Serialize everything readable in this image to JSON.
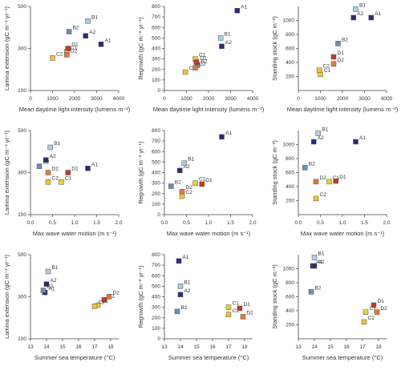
{
  "colors": {
    "navy": "#2b2b7a",
    "steelblue": "#6b8fb5",
    "lightblue": "#a9cfe2",
    "red": "#c0392b",
    "orange": "#e07b39",
    "yellow": "#e6d233",
    "gold": "#f0c040"
  },
  "chart_data": [
    {
      "type": "scatter",
      "xlabel": "Mean daytime light intensity (lumens m⁻²)",
      "ylabel": "Lamina extension (gC m⁻² yr⁻¹)",
      "xlim": [
        0,
        4000
      ],
      "ylim": [
        100,
        500
      ],
      "xticks": [
        "0",
        "1000",
        "2000",
        "3000",
        "4000"
      ],
      "yticks": [
        "100",
        "300",
        "500"
      ],
      "points": [
        {
          "label": "A1",
          "x": 3200,
          "y": 320,
          "color": "navy"
        },
        {
          "label": "A2",
          "x": 2500,
          "y": 360,
          "color": "navy"
        },
        {
          "label": "B1",
          "x": 2600,
          "y": 430,
          "color": "lightblue"
        },
        {
          "label": "B2",
          "x": 1750,
          "y": 380,
          "color": "steelblue"
        },
        {
          "label": "C1",
          "x": 1650,
          "y": 285,
          "color": "yellow"
        },
        {
          "label": "C2",
          "x": 1000,
          "y": 255,
          "color": "gold"
        },
        {
          "label": "D1",
          "x": 1700,
          "y": 300,
          "color": "red"
        },
        {
          "label": "D2",
          "x": 1650,
          "y": 270,
          "color": "orange"
        }
      ]
    },
    {
      "type": "scatter",
      "xlabel": "Mean daytime light intensity (lumens m⁻²)",
      "ylabel": "Regrowth (gC m⁻² yr⁻¹)",
      "xlim": [
        0,
        4000
      ],
      "ylim": [
        0,
        800
      ],
      "xticks": [
        "0",
        "1000",
        "2000",
        "3000",
        "4000"
      ],
      "yticks": [
        "0",
        "100",
        "200",
        "300",
        "400",
        "500",
        "600",
        "700",
        "800"
      ],
      "points": [
        {
          "label": "A1",
          "x": 3300,
          "y": 760,
          "color": "navy"
        },
        {
          "label": "A2",
          "x": 2600,
          "y": 420,
          "color": "navy"
        },
        {
          "label": "B1",
          "x": 2550,
          "y": 500,
          "color": "lightblue"
        },
        {
          "label": "B2",
          "x": 1500,
          "y": 240,
          "color": "steelblue"
        },
        {
          "label": "C1",
          "x": 1400,
          "y": 300,
          "color": "yellow"
        },
        {
          "label": "C2",
          "x": 950,
          "y": 175,
          "color": "gold"
        },
        {
          "label": "D1",
          "x": 1450,
          "y": 270,
          "color": "red"
        },
        {
          "label": "D2",
          "x": 1400,
          "y": 215,
          "color": "orange"
        }
      ]
    },
    {
      "type": "scatter",
      "xlabel": "Mean daytime light intensity (lumens m⁻²)",
      "ylabel": "Standing stock (gC m⁻²)",
      "xlim": [
        0,
        4000
      ],
      "ylim": [
        0,
        1200
      ],
      "xticks": [
        "0",
        "1000",
        "2000",
        "3000",
        "4000"
      ],
      "yticks": [
        "200",
        "400",
        "600",
        "800",
        "1000"
      ],
      "points": [
        {
          "label": "A1",
          "x": 3300,
          "y": 1040,
          "color": "navy"
        },
        {
          "label": "A2",
          "x": 2500,
          "y": 1040,
          "color": "navy"
        },
        {
          "label": "B1",
          "x": 2600,
          "y": 1160,
          "color": "lightblue"
        },
        {
          "label": "B2",
          "x": 1800,
          "y": 670,
          "color": "steelblue"
        },
        {
          "label": "C1",
          "x": 1000,
          "y": 230,
          "color": "yellow"
        },
        {
          "label": "C2",
          "x": 950,
          "y": 290,
          "color": "gold"
        },
        {
          "label": "D1",
          "x": 1600,
          "y": 480,
          "color": "red"
        },
        {
          "label": "D2",
          "x": 1600,
          "y": 380,
          "color": "orange"
        }
      ]
    },
    {
      "type": "scatter",
      "xlabel": "Max wave water motion (m s⁻¹)",
      "ylabel": "Lamina extension (gC m⁻² yr⁻¹)",
      "xlim": [
        0,
        2.0
      ],
      "ylim": [
        100,
        500
      ],
      "xticks": [
        "0.0",
        "0.5",
        "1.0",
        "1.5",
        "2.0"
      ],
      "yticks": [
        "100",
        "300",
        "500"
      ],
      "points": [
        {
          "label": "A1",
          "x": 1.3,
          "y": 320,
          "color": "navy"
        },
        {
          "label": "A2",
          "x": 0.35,
          "y": 360,
          "color": "navy"
        },
        {
          "label": "B1",
          "x": 0.45,
          "y": 420,
          "color": "lightblue"
        },
        {
          "label": "B2",
          "x": 0.2,
          "y": 330,
          "color": "steelblue"
        },
        {
          "label": "C1",
          "x": 0.7,
          "y": 255,
          "color": "yellow"
        },
        {
          "label": "C2",
          "x": 0.4,
          "y": 255,
          "color": "gold"
        },
        {
          "label": "D1",
          "x": 0.85,
          "y": 300,
          "color": "red"
        },
        {
          "label": "D2",
          "x": 0.4,
          "y": 300,
          "color": "orange"
        }
      ]
    },
    {
      "type": "scatter",
      "xlabel": "Max wave water motion (m s⁻¹)",
      "ylabel": "Regrowth (gC m⁻² yr⁻¹)",
      "xlim": [
        0,
        2.0
      ],
      "ylim": [
        0,
        800
      ],
      "xticks": [
        "0.0",
        "0.5",
        "1.0",
        "1.5",
        "2.0"
      ],
      "yticks": [
        "0",
        "100",
        "200",
        "300",
        "400",
        "500",
        "600",
        "700",
        "800"
      ],
      "points": [
        {
          "label": "A1",
          "x": 1.3,
          "y": 740,
          "color": "navy"
        },
        {
          "label": "A2",
          "x": 0.35,
          "y": 420,
          "color": "navy"
        },
        {
          "label": "B1",
          "x": 0.45,
          "y": 490,
          "color": "lightblue"
        },
        {
          "label": "B2",
          "x": 0.15,
          "y": 270,
          "color": "steelblue"
        },
        {
          "label": "C1",
          "x": 0.7,
          "y": 300,
          "color": "yellow"
        },
        {
          "label": "C2",
          "x": 0.4,
          "y": 175,
          "color": "gold"
        },
        {
          "label": "D1",
          "x": 0.85,
          "y": 290,
          "color": "red"
        },
        {
          "label": "D2",
          "x": 0.4,
          "y": 220,
          "color": "orange"
        }
      ]
    },
    {
      "type": "scatter",
      "xlabel": "Max wave water motion (m s⁻¹)",
      "ylabel": "Standing stock (gC m⁻²)",
      "xlim": [
        0,
        2.0
      ],
      "ylim": [
        0,
        1200
      ],
      "xticks": [
        "0.0",
        "0.5",
        "1.0",
        "1.5",
        "2.0"
      ],
      "yticks": [
        "200",
        "400",
        "600",
        "800",
        "1000"
      ],
      "points": [
        {
          "label": "A1",
          "x": 1.3,
          "y": 1040,
          "color": "navy"
        },
        {
          "label": "A2",
          "x": 0.35,
          "y": 1040,
          "color": "navy"
        },
        {
          "label": "B1",
          "x": 0.45,
          "y": 1160,
          "color": "lightblue"
        },
        {
          "label": "B2",
          "x": 0.15,
          "y": 670,
          "color": "steelblue"
        },
        {
          "label": "C1",
          "x": 0.7,
          "y": 470,
          "color": "yellow"
        },
        {
          "label": "C2",
          "x": 0.4,
          "y": 230,
          "color": "gold"
        },
        {
          "label": "D1",
          "x": 0.85,
          "y": 480,
          "color": "red"
        },
        {
          "label": "D2",
          "x": 0.4,
          "y": 470,
          "color": "orange"
        }
      ]
    },
    {
      "type": "scatter",
      "xlabel": "Summer sea temperature (°C)",
      "ylabel": "Lamina extension (gC m⁻² yr⁻¹)",
      "xlim": [
        13,
        18.5
      ],
      "ylim": [
        100,
        500
      ],
      "xticks": [
        "13",
        "14",
        "15",
        "16",
        "17",
        "18"
      ],
      "yticks": [
        "100",
        "300",
        "500"
      ],
      "points": [
        {
          "label": "A1",
          "x": 13.9,
          "y": 320,
          "color": "navy"
        },
        {
          "label": "A2",
          "x": 14.0,
          "y": 360,
          "color": "navy"
        },
        {
          "label": "B1",
          "x": 14.1,
          "y": 420,
          "color": "lightblue"
        },
        {
          "label": "B2",
          "x": 13.8,
          "y": 330,
          "color": "steelblue"
        },
        {
          "label": "C1",
          "x": 17.2,
          "y": 260,
          "color": "yellow"
        },
        {
          "label": "C2",
          "x": 17.0,
          "y": 255,
          "color": "gold"
        },
        {
          "label": "D1",
          "x": 17.6,
          "y": 285,
          "color": "red"
        },
        {
          "label": "D2",
          "x": 17.9,
          "y": 300,
          "color": "orange"
        }
      ]
    },
    {
      "type": "scatter",
      "xlabel": "Summer sea temperature (°C)",
      "ylabel": "Regrowth (gC m⁻² yr⁻¹)",
      "xlim": [
        13,
        18.5
      ],
      "ylim": [
        0,
        800
      ],
      "xticks": [
        "13",
        "14",
        "15",
        "16",
        "17",
        "18"
      ],
      "yticks": [
        "0",
        "100",
        "200",
        "300",
        "400",
        "500",
        "600",
        "700",
        "800"
      ],
      "points": [
        {
          "label": "A1",
          "x": 13.9,
          "y": 740,
          "color": "navy"
        },
        {
          "label": "A2",
          "x": 14.0,
          "y": 420,
          "color": "navy"
        },
        {
          "label": "B1",
          "x": 14.0,
          "y": 500,
          "color": "lightblue"
        },
        {
          "label": "B2",
          "x": 13.8,
          "y": 260,
          "color": "steelblue"
        },
        {
          "label": "C1",
          "x": 17.0,
          "y": 300,
          "color": "yellow"
        },
        {
          "label": "C2",
          "x": 17.0,
          "y": 230,
          "color": "gold"
        },
        {
          "label": "D1",
          "x": 17.7,
          "y": 290,
          "color": "red"
        },
        {
          "label": "D2",
          "x": 17.9,
          "y": 210,
          "color": "orange"
        }
      ]
    },
    {
      "type": "scatter",
      "xlabel": "Summer sea temperature (°C)",
      "ylabel": "Standing stock (gC m⁻²)",
      "xlim": [
        13,
        18.5
      ],
      "ylim": [
        0,
        1200
      ],
      "xticks": [
        "13",
        "14",
        "15",
        "16",
        "17",
        "18"
      ],
      "yticks": [
        "200",
        "400",
        "600",
        "800",
        "1000"
      ],
      "points": [
        {
          "label": "A1",
          "x": 13.9,
          "y": 1040,
          "color": "navy"
        },
        {
          "label": "A2",
          "x": 14.0,
          "y": 1040,
          "color": "navy"
        },
        {
          "label": "B1",
          "x": 14.0,
          "y": 1160,
          "color": "lightblue"
        },
        {
          "label": "B2",
          "x": 13.8,
          "y": 670,
          "color": "steelblue"
        },
        {
          "label": "C1",
          "x": 17.2,
          "y": 380,
          "color": "yellow"
        },
        {
          "label": "C2",
          "x": 17.1,
          "y": 240,
          "color": "gold"
        },
        {
          "label": "D1",
          "x": 17.7,
          "y": 480,
          "color": "red"
        },
        {
          "label": "D2",
          "x": 17.9,
          "y": 380,
          "color": "orange"
        }
      ]
    }
  ]
}
